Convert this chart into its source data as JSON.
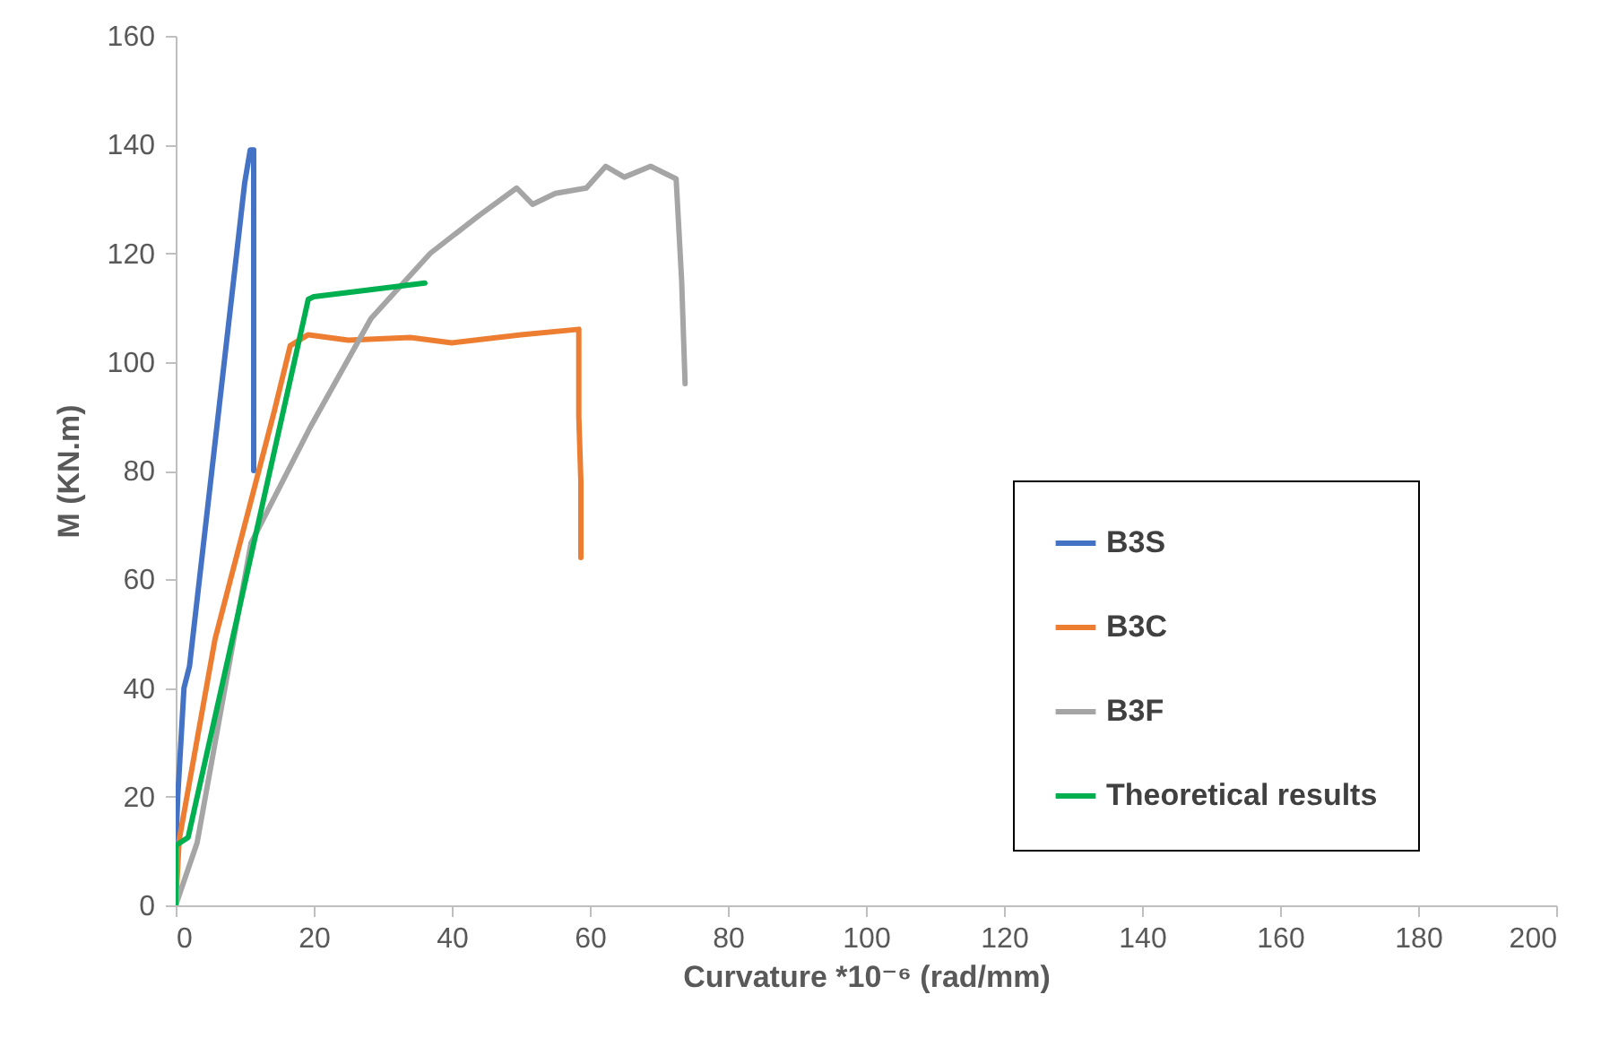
{
  "chart_data": {
    "type": "line",
    "xlabel": "Curvature *10⁻⁶ (rad/mm)",
    "ylabel": "M (KN.m)",
    "xlim": [
      0,
      200
    ],
    "xticks": [
      0,
      20,
      40,
      60,
      80,
      100,
      120,
      140,
      160,
      180,
      200
    ],
    "ylim": [
      0,
      160
    ],
    "yticks": [
      0,
      20,
      40,
      60,
      80,
      100,
      120,
      140,
      160
    ],
    "grid": false,
    "legend": "right",
    "marker": "none",
    "line_style": "solid",
    "series": [
      {
        "name": "B3S",
        "color": "#4472c4",
        "x": [
          0,
          0,
          0.3,
          1.2,
          2,
          6.5,
          10,
          10.8,
          11.3,
          11.3,
          11.3
        ],
        "values": [
          0,
          10,
          20,
          40,
          44,
          94,
          133,
          139,
          139,
          120,
          80
        ]
      },
      {
        "name": "B3C",
        "color": "#ed7d31",
        "x": [
          0,
          0.5,
          5.7,
          14.3,
          16.6,
          19.2,
          25,
          34,
          40,
          50,
          58.4,
          58.4,
          58.7,
          58.7
        ],
        "values": [
          0,
          12,
          49,
          91,
          103,
          105,
          104,
          104.5,
          103.5,
          105,
          106,
          90,
          78,
          64
        ]
      },
      {
        "name": "B3F",
        "color": "#a5a5a5",
        "x": [
          0,
          3.1,
          10.9,
          19.5,
          28.3,
          36.9,
          44,
          49.4,
          51.7,
          55,
          59.5,
          62.3,
          65,
          68.8,
          72.5,
          73.3,
          73.8
        ],
        "values": [
          0,
          11.5,
          66.6,
          88,
          108,
          120,
          127,
          132,
          129,
          131,
          132,
          136,
          134,
          136,
          133.7,
          115,
          96
        ]
      },
      {
        "name": "Theoretical results",
        "color": "#00b050",
        "x": [
          0,
          0,
          1.8,
          19.2,
          20,
          36.1
        ],
        "values": [
          0,
          11,
          12.5,
          111.5,
          112,
          114.5
        ]
      }
    ]
  }
}
